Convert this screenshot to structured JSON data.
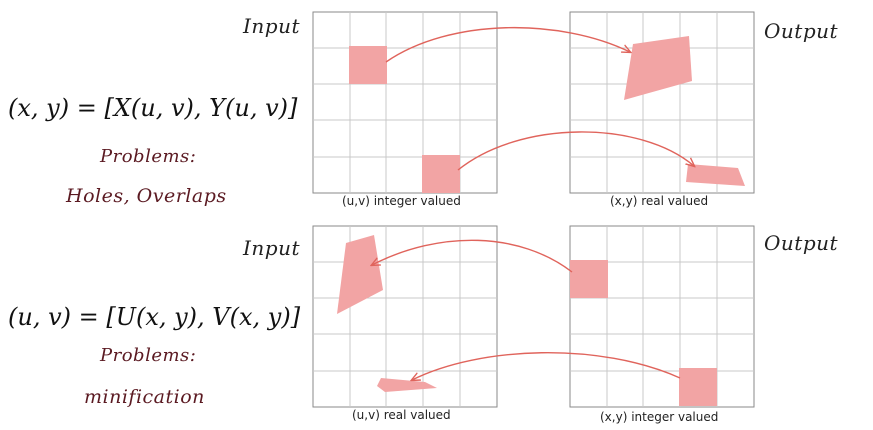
{
  "top": {
    "input_label": "Input",
    "output_label": "Output",
    "equation": "(x, y) = [X(u, v), Y(u, v)]",
    "problems_heading": "Problems:",
    "problems_text": "Holes, Overlaps",
    "caption_left": "(u,v) integer valued",
    "caption_right": "(x,y) real valued"
  },
  "bottom": {
    "input_label": "Input",
    "output_label": "Output",
    "equation": "(u, v) = [U(x, y), V(x, y)]",
    "problems_heading": "Problems:",
    "problems_text": "minification",
    "caption_left": "(u,v) real valued",
    "caption_right": "(x,y) integer valued"
  },
  "colors": {
    "shape_fill": "#f2a4a4",
    "arrow": "#e0645c",
    "grid_line": "#c8c8c8",
    "grid_border": "#8a8a8a"
  }
}
